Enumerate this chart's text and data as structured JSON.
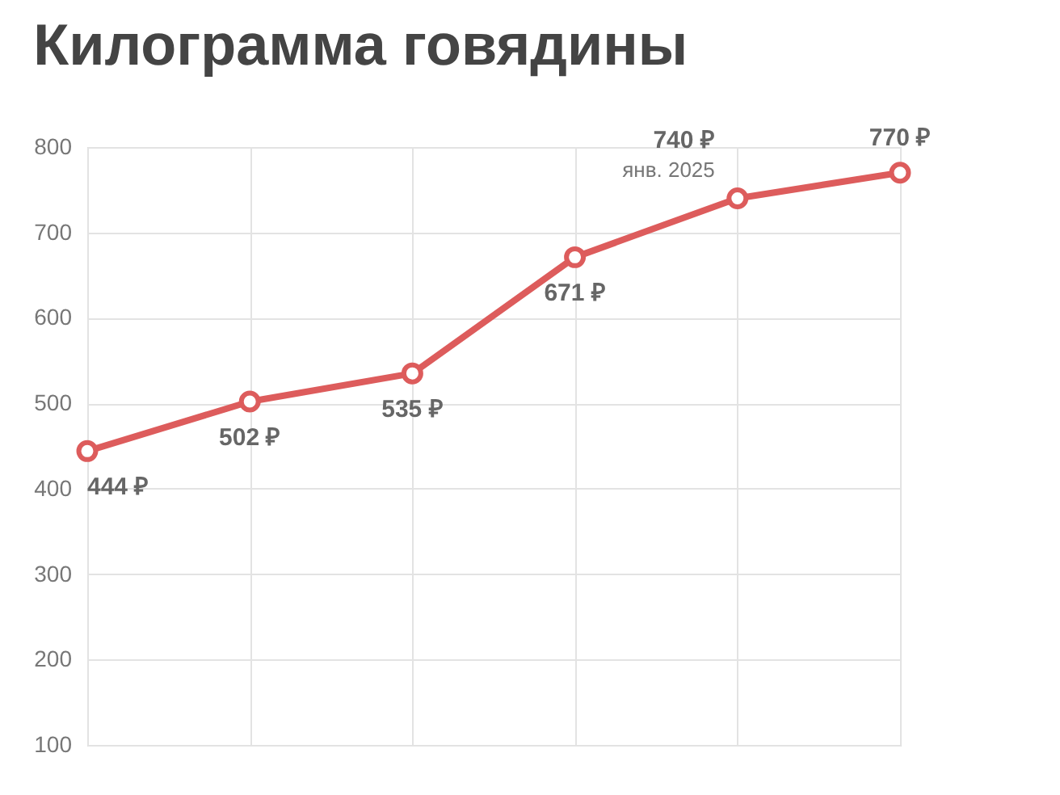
{
  "chart_data": {
    "type": "line",
    "title": "Килограмма говядины",
    "categories": [
      null,
      null,
      null,
      null,
      null,
      null
    ],
    "series": [
      {
        "color": "#dd5c5c",
        "values": [
          444,
          502,
          535,
          671,
          740,
          770
        ]
      }
    ],
    "value_labels": [
      "444 ₽",
      "502 ₽",
      "535 ₽",
      "671 ₽",
      "740 ₽",
      "770 ₽"
    ],
    "annotations": [
      "янв. 2025"
    ],
    "ylim": [
      100,
      800
    ],
    "yticks": [
      100,
      200,
      300,
      400,
      500,
      600,
      700,
      800
    ],
    "grid": true,
    "marker": "circle",
    "line_style": "solid",
    "tick_labels": "y"
  }
}
